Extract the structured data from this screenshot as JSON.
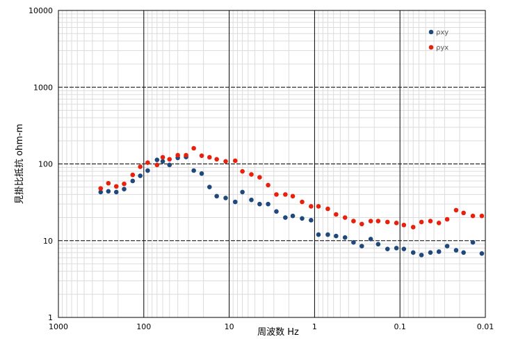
{
  "chart_data": {
    "type": "scatter",
    "title": "",
    "xlabel": "周波数 Hz",
    "ylabel": "見掛比抵抗 ohm-m",
    "x_scale": "log",
    "x_reversed": true,
    "y_scale": "log",
    "xlim": [
      1000,
      0.01
    ],
    "ylim": [
      1,
      10000
    ],
    "x_ticks": [
      1000,
      100,
      10,
      1,
      0.1,
      0.01
    ],
    "x_tick_labels": [
      "1000",
      "100",
      "10",
      "1",
      "0.1",
      "0.01"
    ],
    "y_ticks": [
      1,
      10,
      100,
      1000,
      10000
    ],
    "y_tick_labels": [
      "1",
      "10",
      "100",
      "1000",
      "10000"
    ],
    "grid": true,
    "legend_position": "top-right",
    "series": [
      {
        "name": "ρxy",
        "color": "#1f497d",
        "x": [
          320,
          260,
          210,
          170,
          135,
          110,
          90,
          70,
          60,
          50,
          40,
          32,
          26,
          21,
          17,
          14,
          11,
          8.5,
          7,
          5.5,
          4.4,
          3.5,
          2.8,
          2.2,
          1.8,
          1.4,
          1.1,
          0.9,
          0.7,
          0.56,
          0.44,
          0.35,
          0.28,
          0.22,
          0.18,
          0.14,
          0.11,
          0.09,
          0.07,
          0.056,
          0.044,
          0.035,
          0.028,
          0.022,
          0.018,
          0.014,
          0.011
        ],
        "y": [
          43,
          44,
          43,
          47,
          60,
          70,
          82,
          113,
          108,
          97,
          120,
          123,
          82,
          75,
          50,
          38,
          36,
          32,
          43,
          34,
          30,
          30,
          24,
          20,
          21,
          19.5,
          18.5,
          12,
          12,
          11.5,
          11,
          9.5,
          8.5,
          10.5,
          9,
          7.8,
          8,
          7.8,
          7,
          6.5,
          7,
          7.2,
          8.5,
          7.5,
          7,
          9.5,
          6.8
        ]
      },
      {
        "name": "ρyx",
        "color": "#e8200c",
        "x": [
          320,
          260,
          210,
          170,
          135,
          110,
          90,
          70,
          60,
          50,
          40,
          32,
          26,
          21,
          17,
          14,
          11,
          8.5,
          7,
          5.5,
          4.4,
          3.5,
          2.8,
          2.2,
          1.8,
          1.4,
          1.1,
          0.9,
          0.7,
          0.56,
          0.44,
          0.35,
          0.28,
          0.22,
          0.18,
          0.14,
          0.11,
          0.09,
          0.07,
          0.056,
          0.044,
          0.035,
          0.028,
          0.022,
          0.018,
          0.014,
          0.011
        ],
        "y": [
          48,
          56,
          51,
          55,
          72,
          92,
          104,
          97,
          122,
          115,
          130,
          130,
          160,
          128,
          122,
          115,
          108,
          110,
          80,
          73,
          67,
          53,
          40,
          40,
          38,
          32,
          28,
          28,
          26,
          22,
          20,
          18,
          16.5,
          18,
          18,
          17.5,
          17,
          16,
          15,
          17.5,
          18,
          17,
          19,
          25,
          23,
          21,
          21
        ]
      }
    ]
  }
}
